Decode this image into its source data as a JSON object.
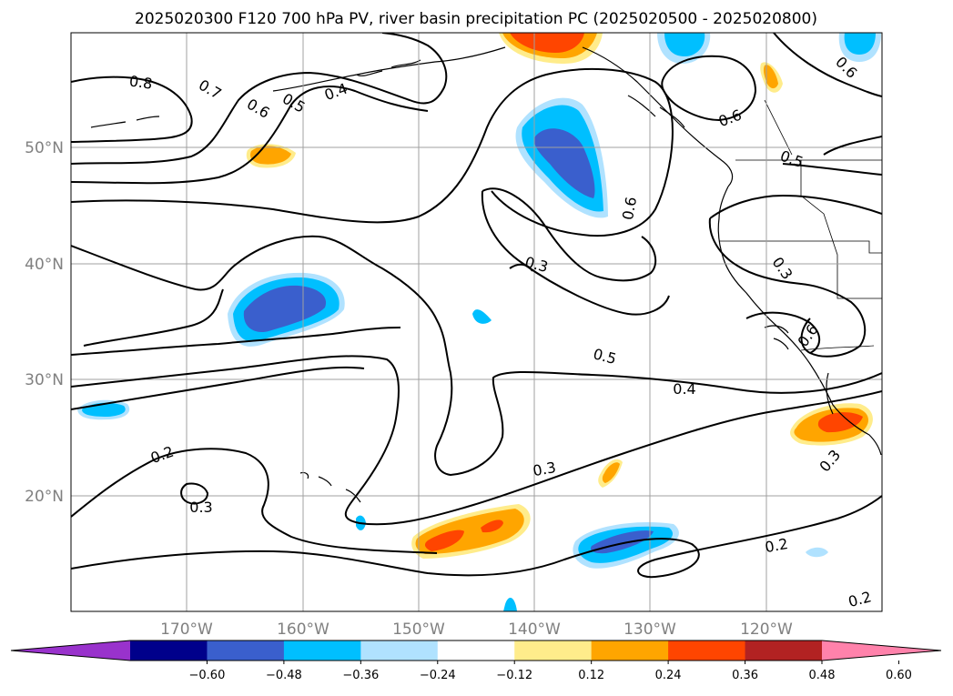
{
  "chart_data": {
    "type": "contour_map",
    "title": "2025020300 F120 700 hPa PV, river basin precipitation PC (2025020500 - 2025020800)",
    "lon_ticks": [
      "170°W",
      "160°W",
      "150°W",
      "140°W",
      "130°W",
      "120°W"
    ],
    "lat_ticks": [
      "50°N",
      "40°N",
      "30°N",
      "20°N"
    ],
    "lon_range": [
      -180,
      -110
    ],
    "lat_range": [
      10,
      60
    ],
    "grid": true,
    "colorbar": {
      "orientation": "horizontal",
      "extend": "both",
      "bounds": [
        -0.72,
        -0.6,
        -0.48,
        -0.36,
        -0.24,
        -0.12,
        0.12,
        0.24,
        0.36,
        0.48,
        0.6,
        0.72
      ],
      "tick_labels": [
        "−0.60",
        "−0.48",
        "−0.36",
        "−0.24",
        "−0.12",
        "0.12",
        "0.24",
        "0.36",
        "0.48",
        "0.60"
      ],
      "colors": [
        "#9932cc",
        "#00008b",
        "#3a5fcd",
        "#00bfff",
        "#b0e2ff",
        "#ffffff",
        "#ffec8b",
        "#ffa500",
        "#ff4500",
        "#b22222",
        "#ff82ab"
      ]
    },
    "contour_labels": [
      "0.8",
      "0.7",
      "0.6",
      "0.5",
      "0.4",
      "0.6",
      "0.6",
      "0.6",
      "0.5",
      "0.3",
      "0.3",
      "0.6",
      "0.5",
      "0.4",
      "0.3",
      "0.2",
      "0.3",
      "0.3",
      "0.2",
      "0.2"
    ]
  }
}
